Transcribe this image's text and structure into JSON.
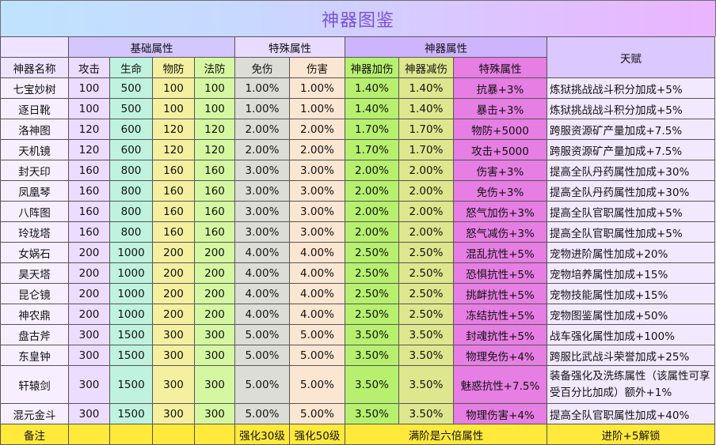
{
  "title": "神器图鉴",
  "groups": {
    "base": "基础属性",
    "special": "特殊属性",
    "artifact": "神器属性",
    "talent": "天赋"
  },
  "columns": {
    "name": "神器名称",
    "atk": "攻击",
    "hp": "生命",
    "def": "物防",
    "mdef": "法防",
    "imm": "免伤",
    "dmg": "伤害",
    "add": "神器加伤",
    "red": "神器减伤",
    "spec": "特殊属性"
  },
  "rows": [
    {
      "name": "七宝妙树",
      "atk": "100",
      "hp": "500",
      "def": "100",
      "mdef": "100",
      "imm": "1.00%",
      "dmg": "1.00%",
      "add": "1.40%",
      "red": "1.40%",
      "spec": "抗暴+3%",
      "talent": "炼狱挑战战斗积分加成+5%"
    },
    {
      "name": "逐日靴",
      "atk": "100",
      "hp": "500",
      "def": "100",
      "mdef": "100",
      "imm": "1.00%",
      "dmg": "1.00%",
      "add": "1.40%",
      "red": "1.40%",
      "spec": "暴击+3%",
      "talent": "炼狱挑战战斗积分加成+5%"
    },
    {
      "name": "洛神图",
      "atk": "120",
      "hp": "600",
      "def": "120",
      "mdef": "120",
      "imm": "2.00%",
      "dmg": "2.00%",
      "add": "1.70%",
      "red": "1.70%",
      "spec": "物防+5000",
      "talent": "跨服资源矿产量加成+7.5%"
    },
    {
      "name": "天机镜",
      "atk": "120",
      "hp": "600",
      "def": "120",
      "mdef": "120",
      "imm": "2.00%",
      "dmg": "2.00%",
      "add": "1.70%",
      "red": "1.70%",
      "spec": "攻击+5000",
      "talent": "跨服资源矿产量加成+7.5%"
    },
    {
      "name": "封天印",
      "atk": "160",
      "hp": "800",
      "def": "160",
      "mdef": "160",
      "imm": "3.00%",
      "dmg": "3.00%",
      "add": "2.00%",
      "red": "2.00%",
      "spec": "伤害+3%",
      "talent": "提高全队丹药属性加成+30%"
    },
    {
      "name": "凤凰琴",
      "atk": "160",
      "hp": "800",
      "def": "160",
      "mdef": "160",
      "imm": "3.00%",
      "dmg": "3.00%",
      "add": "2.00%",
      "red": "2.00%",
      "spec": "免伤+3%",
      "talent": "提高全队丹药属性加成+30%"
    },
    {
      "name": "八阵图",
      "atk": "160",
      "hp": "800",
      "def": "160",
      "mdef": "160",
      "imm": "3.00%",
      "dmg": "3.00%",
      "add": "2.00%",
      "red": "2.00%",
      "spec": "怒气加伤+3%",
      "talent": "提高全队官职属性加成+5%"
    },
    {
      "name": "玲珑塔",
      "atk": "160",
      "hp": "800",
      "def": "160",
      "mdef": "160",
      "imm": "3.00%",
      "dmg": "3.00%",
      "add": "2.00%",
      "red": "2.00%",
      "spec": "怒气减伤+3%",
      "talent": "提高全队官职属性加成+5%"
    },
    {
      "name": "女娲石",
      "atk": "200",
      "hp": "1000",
      "def": "200",
      "mdef": "200",
      "imm": "4.00%",
      "dmg": "4.00%",
      "add": "2.50%",
      "red": "2.50%",
      "spec": "混乱抗性+5%",
      "talent": "宠物进阶属性加成+20%"
    },
    {
      "name": "昊天塔",
      "atk": "200",
      "hp": "1000",
      "def": "200",
      "mdef": "200",
      "imm": "4.00%",
      "dmg": "4.00%",
      "add": "2.50%",
      "red": "2.50%",
      "spec": "恐惧抗性+5%",
      "talent": "宠物培养属性加成+15%"
    },
    {
      "name": "昆仑镜",
      "atk": "200",
      "hp": "1000",
      "def": "200",
      "mdef": "200",
      "imm": "4.00%",
      "dmg": "4.00%",
      "add": "2.50%",
      "red": "2.50%",
      "spec": "挑衅抗性+5%",
      "talent": "宠物技能属性加成+15%"
    },
    {
      "name": "神农鼎",
      "atk": "200",
      "hp": "1000",
      "def": "200",
      "mdef": "200",
      "imm": "4.00%",
      "dmg": "4.00%",
      "add": "2.50%",
      "red": "2.50%",
      "spec": "冻结抗性+5%",
      "talent": "宠物图鉴属性加成+50%"
    },
    {
      "name": "盘古斧",
      "atk": "300",
      "hp": "1500",
      "def": "300",
      "mdef": "300",
      "imm": "5.00%",
      "dmg": "5.00%",
      "add": "3.50%",
      "red": "3.50%",
      "spec": "封魂抗性+5%",
      "talent": "战车强化属性加成+100%"
    },
    {
      "name": "东皇钟",
      "atk": "300",
      "hp": "1500",
      "def": "300",
      "mdef": "300",
      "imm": "5.00%",
      "dmg": "5.00%",
      "add": "3.50%",
      "red": "3.50%",
      "spec": "物理免伤+4%",
      "talent": "跨服比武战斗荣誉加成+25%"
    },
    {
      "name": "轩辕剑",
      "atk": "300",
      "hp": "1500",
      "def": "300",
      "mdef": "300",
      "imm": "5.00%",
      "dmg": "5.00%",
      "add": "3.50%",
      "red": "3.50%",
      "spec": "魅惑抗性+7.5%",
      "talent": "装备强化及洗练属性（该属性可享受百分比加成）额外+1%"
    },
    {
      "name": "混元金斗",
      "atk": "300",
      "hp": "1500",
      "def": "300",
      "mdef": "300",
      "imm": "5.00%",
      "dmg": "5.00%",
      "add": "3.50%",
      "red": "3.50%",
      "spec": "物理伤害+4%",
      "talent": "提高全队官职属性加成+40%"
    }
  ],
  "footer": {
    "label": "备注",
    "imm_note": "强化30级",
    "dmg_note": "强化50级",
    "artifact_note": "满阶是六倍属性",
    "talent_note": "进阶+5解锁"
  },
  "colors": {
    "title_text": "#7a52d8",
    "footer_bg": "#ffe93a",
    "special_attr_bg": "#e67ee3"
  }
}
